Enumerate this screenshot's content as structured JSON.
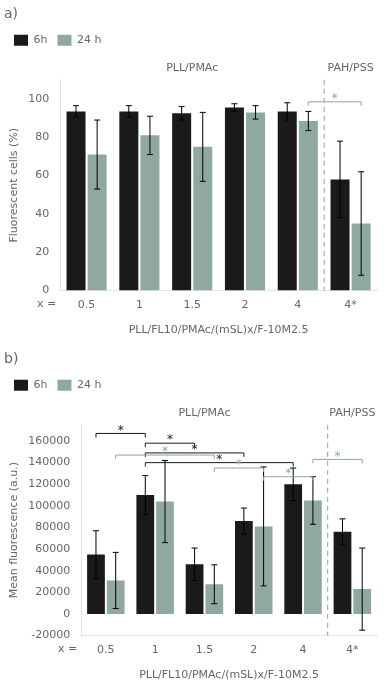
{
  "chart_data": [
    {
      "type": "bar",
      "title": "a)",
      "categories": [
        "0.5",
        "1",
        "1.5",
        "2",
        "4",
        "4*"
      ],
      "series": [
        {
          "name": "6h",
          "color": "#1a1a1a",
          "values": [
            93.5,
            93.5,
            92.5,
            95.5,
            93.5,
            58.0
          ],
          "errors": [
            3.0,
            3.0,
            3.5,
            2.0,
            4.5,
            20.0
          ]
        },
        {
          "name": "24 h",
          "color": "#8fa8a0",
          "values": [
            71.0,
            81.0,
            75.0,
            93.0,
            88.5,
            35.0
          ],
          "errors": [
            18.0,
            10.0,
            18.0,
            3.5,
            5.0,
            27.0
          ]
        }
      ],
      "xlabel": "PLL/FL10/PMAc/(mSL)x/F-10M2.5",
      "x_prefix": "x =",
      "ylabel": "Fluorescent cells (%)",
      "ylim": [
        0,
        110
      ],
      "yticks": [
        0,
        20,
        40,
        60,
        80,
        100
      ],
      "grid": false,
      "legend": "upper left",
      "annotations": [
        {
          "text": "PLL/PMAc",
          "categories": [
            "0.5",
            "1",
            "1.5",
            "2",
            "4"
          ]
        },
        {
          "text": "PAH/PSS",
          "categories": [
            "4*"
          ]
        }
      ],
      "brackets": [
        {
          "from": "4",
          "to": "4*",
          "series": "24 h",
          "y": 98.5,
          "label": "*"
        }
      ]
    },
    {
      "type": "bar",
      "title": "b)",
      "categories": [
        "0.5",
        "1",
        "1.5",
        "2",
        "4",
        "4*"
      ],
      "series": [
        {
          "name": "6h",
          "color": "#1a1a1a",
          "values": [
            55000,
            110000,
            46000,
            86000,
            120000,
            76000
          ],
          "errors": [
            22000,
            18000,
            15000,
            12000,
            15000,
            12000
          ]
        },
        {
          "name": "24 h",
          "color": "#8fa8a0",
          "values": [
            31000,
            104000,
            27500,
            81000,
            105000,
            23000
          ],
          "errors": [
            26000,
            38000,
            18000,
            55000,
            22000,
            38000
          ]
        }
      ],
      "xlabel": "PLL/FL10/PMAc/(mSL)x/F-10M2.5",
      "x_prefix": "x =",
      "ylabel": "Mean fluorescence (a.u.)",
      "ylim": [
        -20000,
        175000
      ],
      "yticks": [
        -20000,
        0,
        20000,
        40000,
        60000,
        80000,
        100000,
        120000,
        140000,
        160000
      ],
      "grid": false,
      "legend": "upper left",
      "annotations": [
        {
          "text": "PLL/PMAc",
          "categories": [
            "0.5",
            "1",
            "1.5",
            "2",
            "4"
          ]
        },
        {
          "text": "PAH/PSS",
          "categories": [
            "4*"
          ]
        }
      ],
      "brackets": [
        {
          "from": "0.5",
          "to": "1",
          "series": "6h",
          "y": 167000,
          "label": "*"
        },
        {
          "from": "1",
          "to": "1.5",
          "series": "6h",
          "y": 158000,
          "label": "*"
        },
        {
          "from": "1",
          "to": "2",
          "series": "6h",
          "y": 149000,
          "label": "*"
        },
        {
          "from": "1",
          "to": "4",
          "series": "6h",
          "y": 140000,
          "label": "*"
        },
        {
          "from": "0.5",
          "to": "1.5",
          "series": "24 h",
          "y": 147000,
          "label": "*"
        },
        {
          "from": "1.5",
          "to": "2",
          "series": "24 h",
          "y": 135000,
          "label": "*"
        },
        {
          "from": "2",
          "to": "4",
          "series": "24 h",
          "y": 127000,
          "label": "*"
        },
        {
          "from": "4",
          "to": "4*",
          "series": "24 h",
          "y": 143000,
          "label": "*"
        }
      ]
    }
  ]
}
